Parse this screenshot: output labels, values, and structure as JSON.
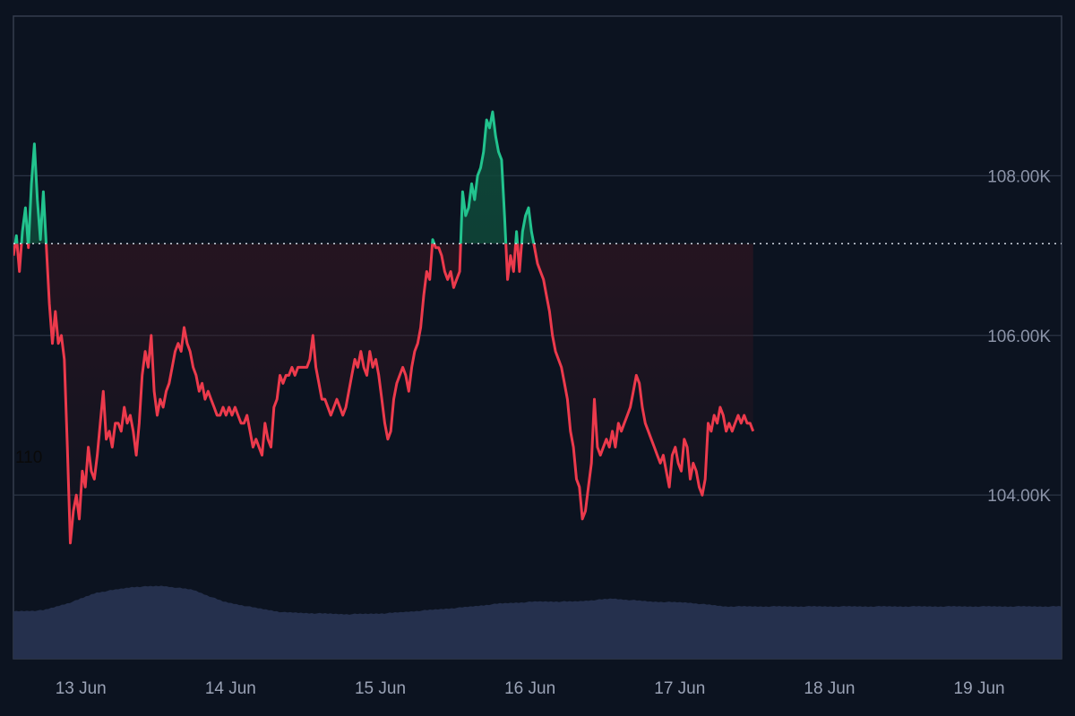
{
  "colors": {
    "background": "#0c1320",
    "grid": "#2b3445",
    "frame": "#343d4e",
    "up": "#22c38e",
    "down": "#ec3a4c",
    "up_fill": "#0f4a3a",
    "down_fill": "#3a1620",
    "baseline": "#cfd5e0",
    "volume": "#25304d",
    "tick_text": "#9aa2b5"
  },
  "chart_data": {
    "type": "area",
    "title": "",
    "xlabel": "",
    "ylabel": "",
    "baseline_value": 107150,
    "x_ticks": [
      "13 Jun",
      "14 Jun",
      "15 Jun",
      "16 Jun",
      "17 Jun",
      "18 Jun",
      "19 Jun"
    ],
    "y_ticks": [
      {
        "value": 108000,
        "label": "108.00K"
      },
      {
        "value": 106000,
        "label": "106.00K"
      },
      {
        "value": 104000,
        "label": "104.00K"
      }
    ],
    "ylim": [
      101950,
      110000
    ],
    "xlim_days": [
      12.55,
      19.55
    ],
    "annotations": [
      {
        "text": "110"
      }
    ],
    "price_series": {
      "name": "",
      "points": [
        [
          12.55,
          107000
        ],
        [
          12.57,
          107250
        ],
        [
          12.59,
          106800
        ],
        [
          12.61,
          107300
        ],
        [
          12.63,
          107600
        ],
        [
          12.65,
          107100
        ],
        [
          12.67,
          107900
        ],
        [
          12.69,
          108400
        ],
        [
          12.71,
          107700
        ],
        [
          12.73,
          107200
        ],
        [
          12.75,
          107800
        ],
        [
          12.77,
          107100
        ],
        [
          12.79,
          106400
        ],
        [
          12.81,
          105900
        ],
        [
          12.83,
          106300
        ],
        [
          12.85,
          105900
        ],
        [
          12.87,
          106000
        ],
        [
          12.89,
          105700
        ],
        [
          12.91,
          104600
        ],
        [
          12.93,
          103400
        ],
        [
          12.95,
          103800
        ],
        [
          12.97,
          104000
        ],
        [
          12.99,
          103700
        ],
        [
          13.01,
          104300
        ],
        [
          13.03,
          104100
        ],
        [
          13.05,
          104600
        ],
        [
          13.07,
          104300
        ],
        [
          13.09,
          104200
        ],
        [
          13.11,
          104500
        ],
        [
          13.13,
          104900
        ],
        [
          13.15,
          105300
        ],
        [
          13.17,
          104700
        ],
        [
          13.19,
          104800
        ],
        [
          13.21,
          104600
        ],
        [
          13.23,
          104900
        ],
        [
          13.25,
          104900
        ],
        [
          13.27,
          104800
        ],
        [
          13.29,
          105100
        ],
        [
          13.31,
          104900
        ],
        [
          13.33,
          105000
        ],
        [
          13.35,
          104800
        ],
        [
          13.37,
          104500
        ],
        [
          13.39,
          104900
        ],
        [
          13.41,
          105500
        ],
        [
          13.43,
          105800
        ],
        [
          13.45,
          105600
        ],
        [
          13.47,
          106000
        ],
        [
          13.49,
          105300
        ],
        [
          13.51,
          105000
        ],
        [
          13.53,
          105200
        ],
        [
          13.55,
          105100
        ],
        [
          13.57,
          105300
        ],
        [
          13.59,
          105400
        ],
        [
          13.61,
          105600
        ],
        [
          13.63,
          105800
        ],
        [
          13.65,
          105900
        ],
        [
          13.67,
          105800
        ],
        [
          13.69,
          106100
        ],
        [
          13.71,
          105900
        ],
        [
          13.73,
          105800
        ],
        [
          13.75,
          105600
        ],
        [
          13.77,
          105500
        ],
        [
          13.79,
          105300
        ],
        [
          13.81,
          105400
        ],
        [
          13.83,
          105200
        ],
        [
          13.85,
          105300
        ],
        [
          13.87,
          105200
        ],
        [
          13.89,
          105100
        ],
        [
          13.91,
          105000
        ],
        [
          13.93,
          105000
        ],
        [
          13.95,
          105100
        ],
        [
          13.97,
          105000
        ],
        [
          13.99,
          105100
        ],
        [
          14.01,
          105000
        ],
        [
          14.03,
          105100
        ],
        [
          14.05,
          105000
        ],
        [
          14.07,
          104900
        ],
        [
          14.09,
          104900
        ],
        [
          14.11,
          105000
        ],
        [
          14.13,
          104800
        ],
        [
          14.15,
          104600
        ],
        [
          14.17,
          104700
        ],
        [
          14.19,
          104600
        ],
        [
          14.21,
          104500
        ],
        [
          14.23,
          104900
        ],
        [
          14.25,
          104700
        ],
        [
          14.27,
          104600
        ],
        [
          14.29,
          105100
        ],
        [
          14.31,
          105200
        ],
        [
          14.33,
          105500
        ],
        [
          14.35,
          105400
        ],
        [
          14.37,
          105500
        ],
        [
          14.39,
          105500
        ],
        [
          14.41,
          105600
        ],
        [
          14.43,
          105500
        ],
        [
          14.45,
          105600
        ],
        [
          14.47,
          105600
        ],
        [
          14.49,
          105600
        ],
        [
          14.51,
          105600
        ],
        [
          14.53,
          105700
        ],
        [
          14.55,
          106000
        ],
        [
          14.57,
          105600
        ],
        [
          14.59,
          105400
        ],
        [
          14.61,
          105200
        ],
        [
          14.63,
          105200
        ],
        [
          14.65,
          105100
        ],
        [
          14.67,
          105000
        ],
        [
          14.69,
          105100
        ],
        [
          14.71,
          105200
        ],
        [
          14.73,
          105100
        ],
        [
          14.75,
          105000
        ],
        [
          14.77,
          105100
        ],
        [
          14.79,
          105300
        ],
        [
          14.81,
          105500
        ],
        [
          14.83,
          105700
        ],
        [
          14.85,
          105600
        ],
        [
          14.87,
          105800
        ],
        [
          14.89,
          105600
        ],
        [
          14.91,
          105500
        ],
        [
          14.93,
          105800
        ],
        [
          14.95,
          105600
        ],
        [
          14.97,
          105700
        ],
        [
          14.99,
          105500
        ],
        [
          15.01,
          105200
        ],
        [
          15.03,
          104900
        ],
        [
          15.05,
          104700
        ],
        [
          15.07,
          104800
        ],
        [
          15.09,
          105200
        ],
        [
          15.11,
          105400
        ],
        [
          15.13,
          105500
        ],
        [
          15.15,
          105600
        ],
        [
          15.17,
          105500
        ],
        [
          15.19,
          105300
        ],
        [
          15.21,
          105600
        ],
        [
          15.23,
          105800
        ],
        [
          15.25,
          105900
        ],
        [
          15.27,
          106100
        ],
        [
          15.29,
          106500
        ],
        [
          15.31,
          106800
        ],
        [
          15.33,
          106700
        ],
        [
          15.35,
          107200
        ],
        [
          15.37,
          107100
        ],
        [
          15.39,
          107100
        ],
        [
          15.41,
          107000
        ],
        [
          15.43,
          106800
        ],
        [
          15.45,
          106700
        ],
        [
          15.47,
          106800
        ],
        [
          15.49,
          106600
        ],
        [
          15.51,
          106700
        ],
        [
          15.53,
          106800
        ],
        [
          15.55,
          107800
        ],
        [
          15.57,
          107500
        ],
        [
          15.59,
          107600
        ],
        [
          15.61,
          107900
        ],
        [
          15.63,
          107700
        ],
        [
          15.65,
          108000
        ],
        [
          15.67,
          108100
        ],
        [
          15.69,
          108300
        ],
        [
          15.71,
          108700
        ],
        [
          15.73,
          108600
        ],
        [
          15.75,
          108800
        ],
        [
          15.77,
          108500
        ],
        [
          15.79,
          108300
        ],
        [
          15.81,
          108200
        ],
        [
          15.83,
          107500
        ],
        [
          15.85,
          106700
        ],
        [
          15.87,
          107000
        ],
        [
          15.89,
          106800
        ],
        [
          15.91,
          107300
        ],
        [
          15.93,
          106800
        ],
        [
          15.95,
          107300
        ],
        [
          15.97,
          107500
        ],
        [
          15.99,
          107600
        ],
        [
          16.01,
          107300
        ],
        [
          16.03,
          107100
        ],
        [
          16.05,
          106900
        ],
        [
          16.07,
          106800
        ],
        [
          16.09,
          106700
        ],
        [
          16.11,
          106500
        ],
        [
          16.13,
          106300
        ],
        [
          16.15,
          106000
        ],
        [
          16.17,
          105800
        ],
        [
          16.19,
          105700
        ],
        [
          16.21,
          105600
        ],
        [
          16.23,
          105400
        ],
        [
          16.25,
          105200
        ],
        [
          16.27,
          104800
        ],
        [
          16.29,
          104600
        ],
        [
          16.31,
          104200
        ],
        [
          16.33,
          104100
        ],
        [
          16.35,
          103700
        ],
        [
          16.37,
          103800
        ],
        [
          16.39,
          104100
        ],
        [
          16.41,
          104400
        ],
        [
          16.43,
          105200
        ],
        [
          16.45,
          104600
        ],
        [
          16.47,
          104500
        ],
        [
          16.49,
          104600
        ],
        [
          16.51,
          104700
        ],
        [
          16.53,
          104600
        ],
        [
          16.55,
          104800
        ],
        [
          16.57,
          104600
        ],
        [
          16.59,
          104900
        ],
        [
          16.61,
          104800
        ],
        [
          16.63,
          104900
        ],
        [
          16.65,
          105000
        ],
        [
          16.67,
          105100
        ],
        [
          16.69,
          105300
        ],
        [
          16.71,
          105500
        ],
        [
          16.73,
          105400
        ],
        [
          16.75,
          105100
        ],
        [
          16.77,
          104900
        ],
        [
          16.79,
          104800
        ],
        [
          16.81,
          104700
        ],
        [
          16.83,
          104600
        ],
        [
          16.85,
          104500
        ],
        [
          16.87,
          104400
        ],
        [
          16.89,
          104500
        ],
        [
          16.91,
          104300
        ],
        [
          16.93,
          104100
        ],
        [
          16.95,
          104500
        ],
        [
          16.97,
          104600
        ],
        [
          16.99,
          104400
        ],
        [
          17.01,
          104300
        ],
        [
          17.03,
          104700
        ],
        [
          17.05,
          104600
        ],
        [
          17.07,
          104200
        ],
        [
          17.09,
          104400
        ],
        [
          17.11,
          104300
        ],
        [
          17.13,
          104100
        ],
        [
          17.15,
          104000
        ],
        [
          17.17,
          104200
        ],
        [
          17.19,
          104900
        ],
        [
          17.21,
          104800
        ],
        [
          17.23,
          105000
        ],
        [
          17.25,
          104900
        ],
        [
          17.27,
          105100
        ],
        [
          17.29,
          105000
        ],
        [
          17.31,
          104800
        ],
        [
          17.33,
          104900
        ],
        [
          17.35,
          104800
        ],
        [
          17.37,
          104900
        ],
        [
          17.39,
          105000
        ],
        [
          17.41,
          104900
        ],
        [
          17.43,
          105000
        ],
        [
          17.45,
          104900
        ],
        [
          17.47,
          104900
        ],
        [
          17.49,
          104800
        ]
      ]
    },
    "volume_series": {
      "name": "",
      "points": [
        [
          12.55,
          0.48
        ],
        [
          12.75,
          0.49
        ],
        [
          12.95,
          0.58
        ],
        [
          13.1,
          0.67
        ],
        [
          13.35,
          0.73
        ],
        [
          13.55,
          0.74
        ],
        [
          13.75,
          0.7
        ],
        [
          13.95,
          0.58
        ],
        [
          14.15,
          0.52
        ],
        [
          14.35,
          0.47
        ],
        [
          14.55,
          0.46
        ],
        [
          14.8,
          0.45
        ],
        [
          15.05,
          0.46
        ],
        [
          15.3,
          0.49
        ],
        [
          15.55,
          0.52
        ],
        [
          15.8,
          0.56
        ],
        [
          16.05,
          0.58
        ],
        [
          16.3,
          0.58
        ],
        [
          16.55,
          0.61
        ],
        [
          16.8,
          0.58
        ],
        [
          17.05,
          0.57
        ],
        [
          17.3,
          0.53
        ],
        [
          17.49,
          0.53
        ]
      ]
    }
  }
}
